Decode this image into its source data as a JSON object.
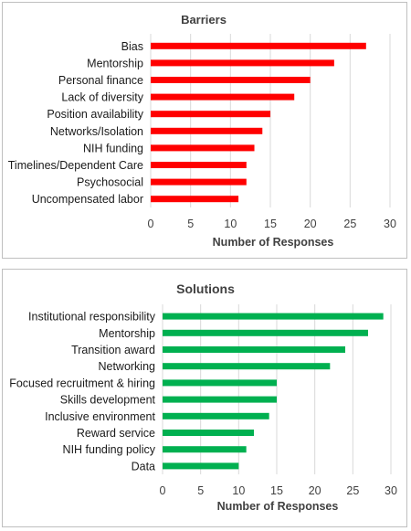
{
  "chart_data": [
    {
      "type": "bar",
      "orientation": "horizontal",
      "title": "Barriers",
      "xlabel": "Number of Responses",
      "ylabel": "",
      "categories": [
        "Bias",
        "Mentorship",
        "Personal finance",
        "Lack of diversity",
        "Position availability",
        "Networks/Isolation",
        "NIH funding",
        "Timelines/Dependent Care",
        "Psychosocial",
        "Uncompensated labor"
      ],
      "values": [
        27,
        23,
        20,
        18,
        15,
        14,
        13,
        12,
        12,
        11
      ],
      "xlim": [
        0,
        30
      ],
      "xticks": [
        0,
        5,
        10,
        15,
        20,
        25,
        30
      ],
      "grid": true,
      "color": "#ff0000"
    },
    {
      "type": "bar",
      "orientation": "horizontal",
      "title": "Solutions",
      "xlabel": "Number of Responses",
      "ylabel": "",
      "categories": [
        "Institutional responsibility",
        "Mentorship",
        "Transition award",
        "Networking",
        "Focused recruitment & hiring",
        "Skills development",
        "Inclusive environment",
        "Reward service",
        "NIH funding policy",
        "Data"
      ],
      "values": [
        29,
        27,
        24,
        22,
        15,
        15,
        14,
        12,
        11,
        10
      ],
      "xlim": [
        0,
        30
      ],
      "xticks": [
        0,
        5,
        10,
        15,
        20,
        25,
        30
      ],
      "grid": true,
      "color": "#00b050"
    }
  ]
}
